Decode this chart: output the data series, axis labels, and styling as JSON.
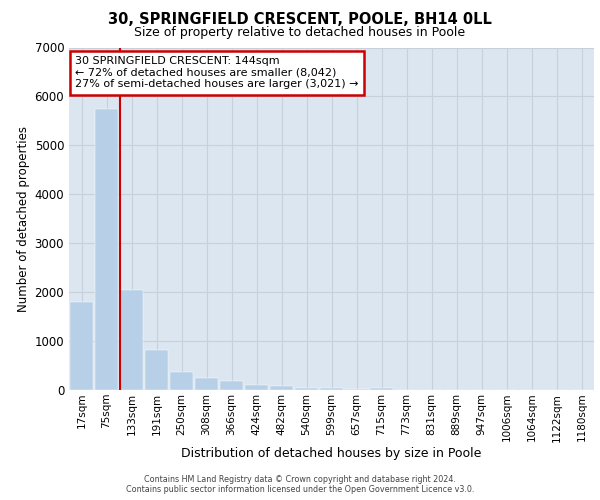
{
  "title1": "30, SPRINGFIELD CRESCENT, POOLE, BH14 0LL",
  "title2": "Size of property relative to detached houses in Poole",
  "xlabel": "Distribution of detached houses by size in Poole",
  "ylabel": "Number of detached properties",
  "bar_labels": [
    "17sqm",
    "75sqm",
    "133sqm",
    "191sqm",
    "250sqm",
    "308sqm",
    "366sqm",
    "424sqm",
    "482sqm",
    "540sqm",
    "599sqm",
    "657sqm",
    "715sqm",
    "773sqm",
    "831sqm",
    "889sqm",
    "947sqm",
    "1006sqm",
    "1064sqm",
    "1122sqm",
    "1180sqm"
  ],
  "bar_values": [
    1800,
    5750,
    2050,
    825,
    375,
    240,
    175,
    100,
    80,
    50,
    40,
    30,
    50,
    0,
    0,
    0,
    0,
    0,
    0,
    0,
    0
  ],
  "bar_color": "#b8cfe8",
  "grid_color": "#c8d0dc",
  "bg_color": "#dce6f0",
  "vline_bar_index": 2,
  "vline_color": "#cc0000",
  "ylim": [
    0,
    7000
  ],
  "annotation_text": "30 SPRINGFIELD CRESCENT: 144sqm\n← 72% of detached houses are smaller (8,042)\n27% of semi-detached houses are larger (3,021) →",
  "annotation_box_edgecolor": "#cc0000",
  "footer1": "Contains HM Land Registry data © Crown copyright and database right 2024.",
  "footer2": "Contains public sector information licensed under the Open Government Licence v3.0."
}
